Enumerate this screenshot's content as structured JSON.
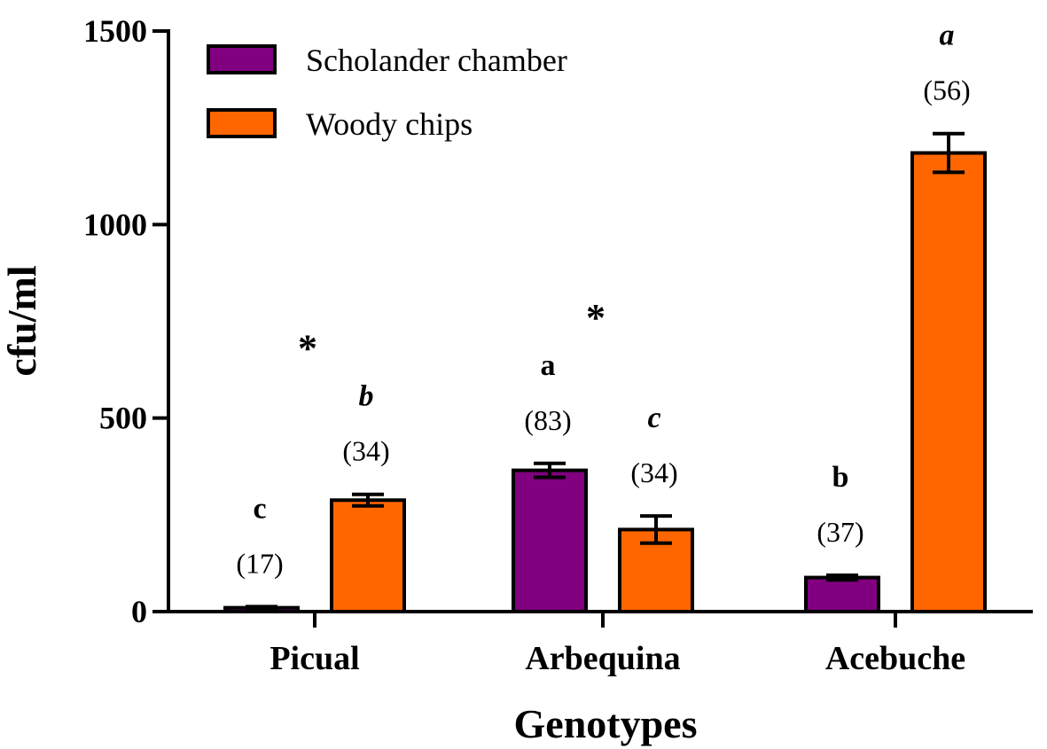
{
  "chart_data": {
    "type": "bar",
    "xlabel": "Genotypes",
    "ylabel": "cfu/ml",
    "ylim": [
      0,
      1500
    ],
    "yticks": [
      "0",
      "500",
      "1000",
      "1500"
    ],
    "ytick_values": [
      0,
      500,
      1000,
      1500
    ],
    "grid": false,
    "legend_position": "top-left",
    "categories": [
      "Picual",
      "Arbequina",
      "Acebuche"
    ],
    "series": [
      {
        "name": "Scholander chamber",
        "color": "#800080",
        "values": [
          10,
          365,
          88
        ],
        "errors": [
          3,
          18,
          6
        ],
        "n_labels": [
          "(17)",
          "(83)",
          "(37)"
        ],
        "letters": [
          "c",
          "a",
          "b"
        ],
        "letters_italic": false
      },
      {
        "name": "Woody chips",
        "color": "#FF6600",
        "values": [
          288,
          212,
          1185
        ],
        "errors": [
          15,
          35,
          50
        ],
        "n_labels": [
          "(34)",
          "(34)",
          "(56)"
        ],
        "letters": [
          "b",
          "c",
          "a"
        ],
        "letters_italic": true
      }
    ],
    "significance_markers": [
      "*",
      "*",
      "*"
    ]
  }
}
